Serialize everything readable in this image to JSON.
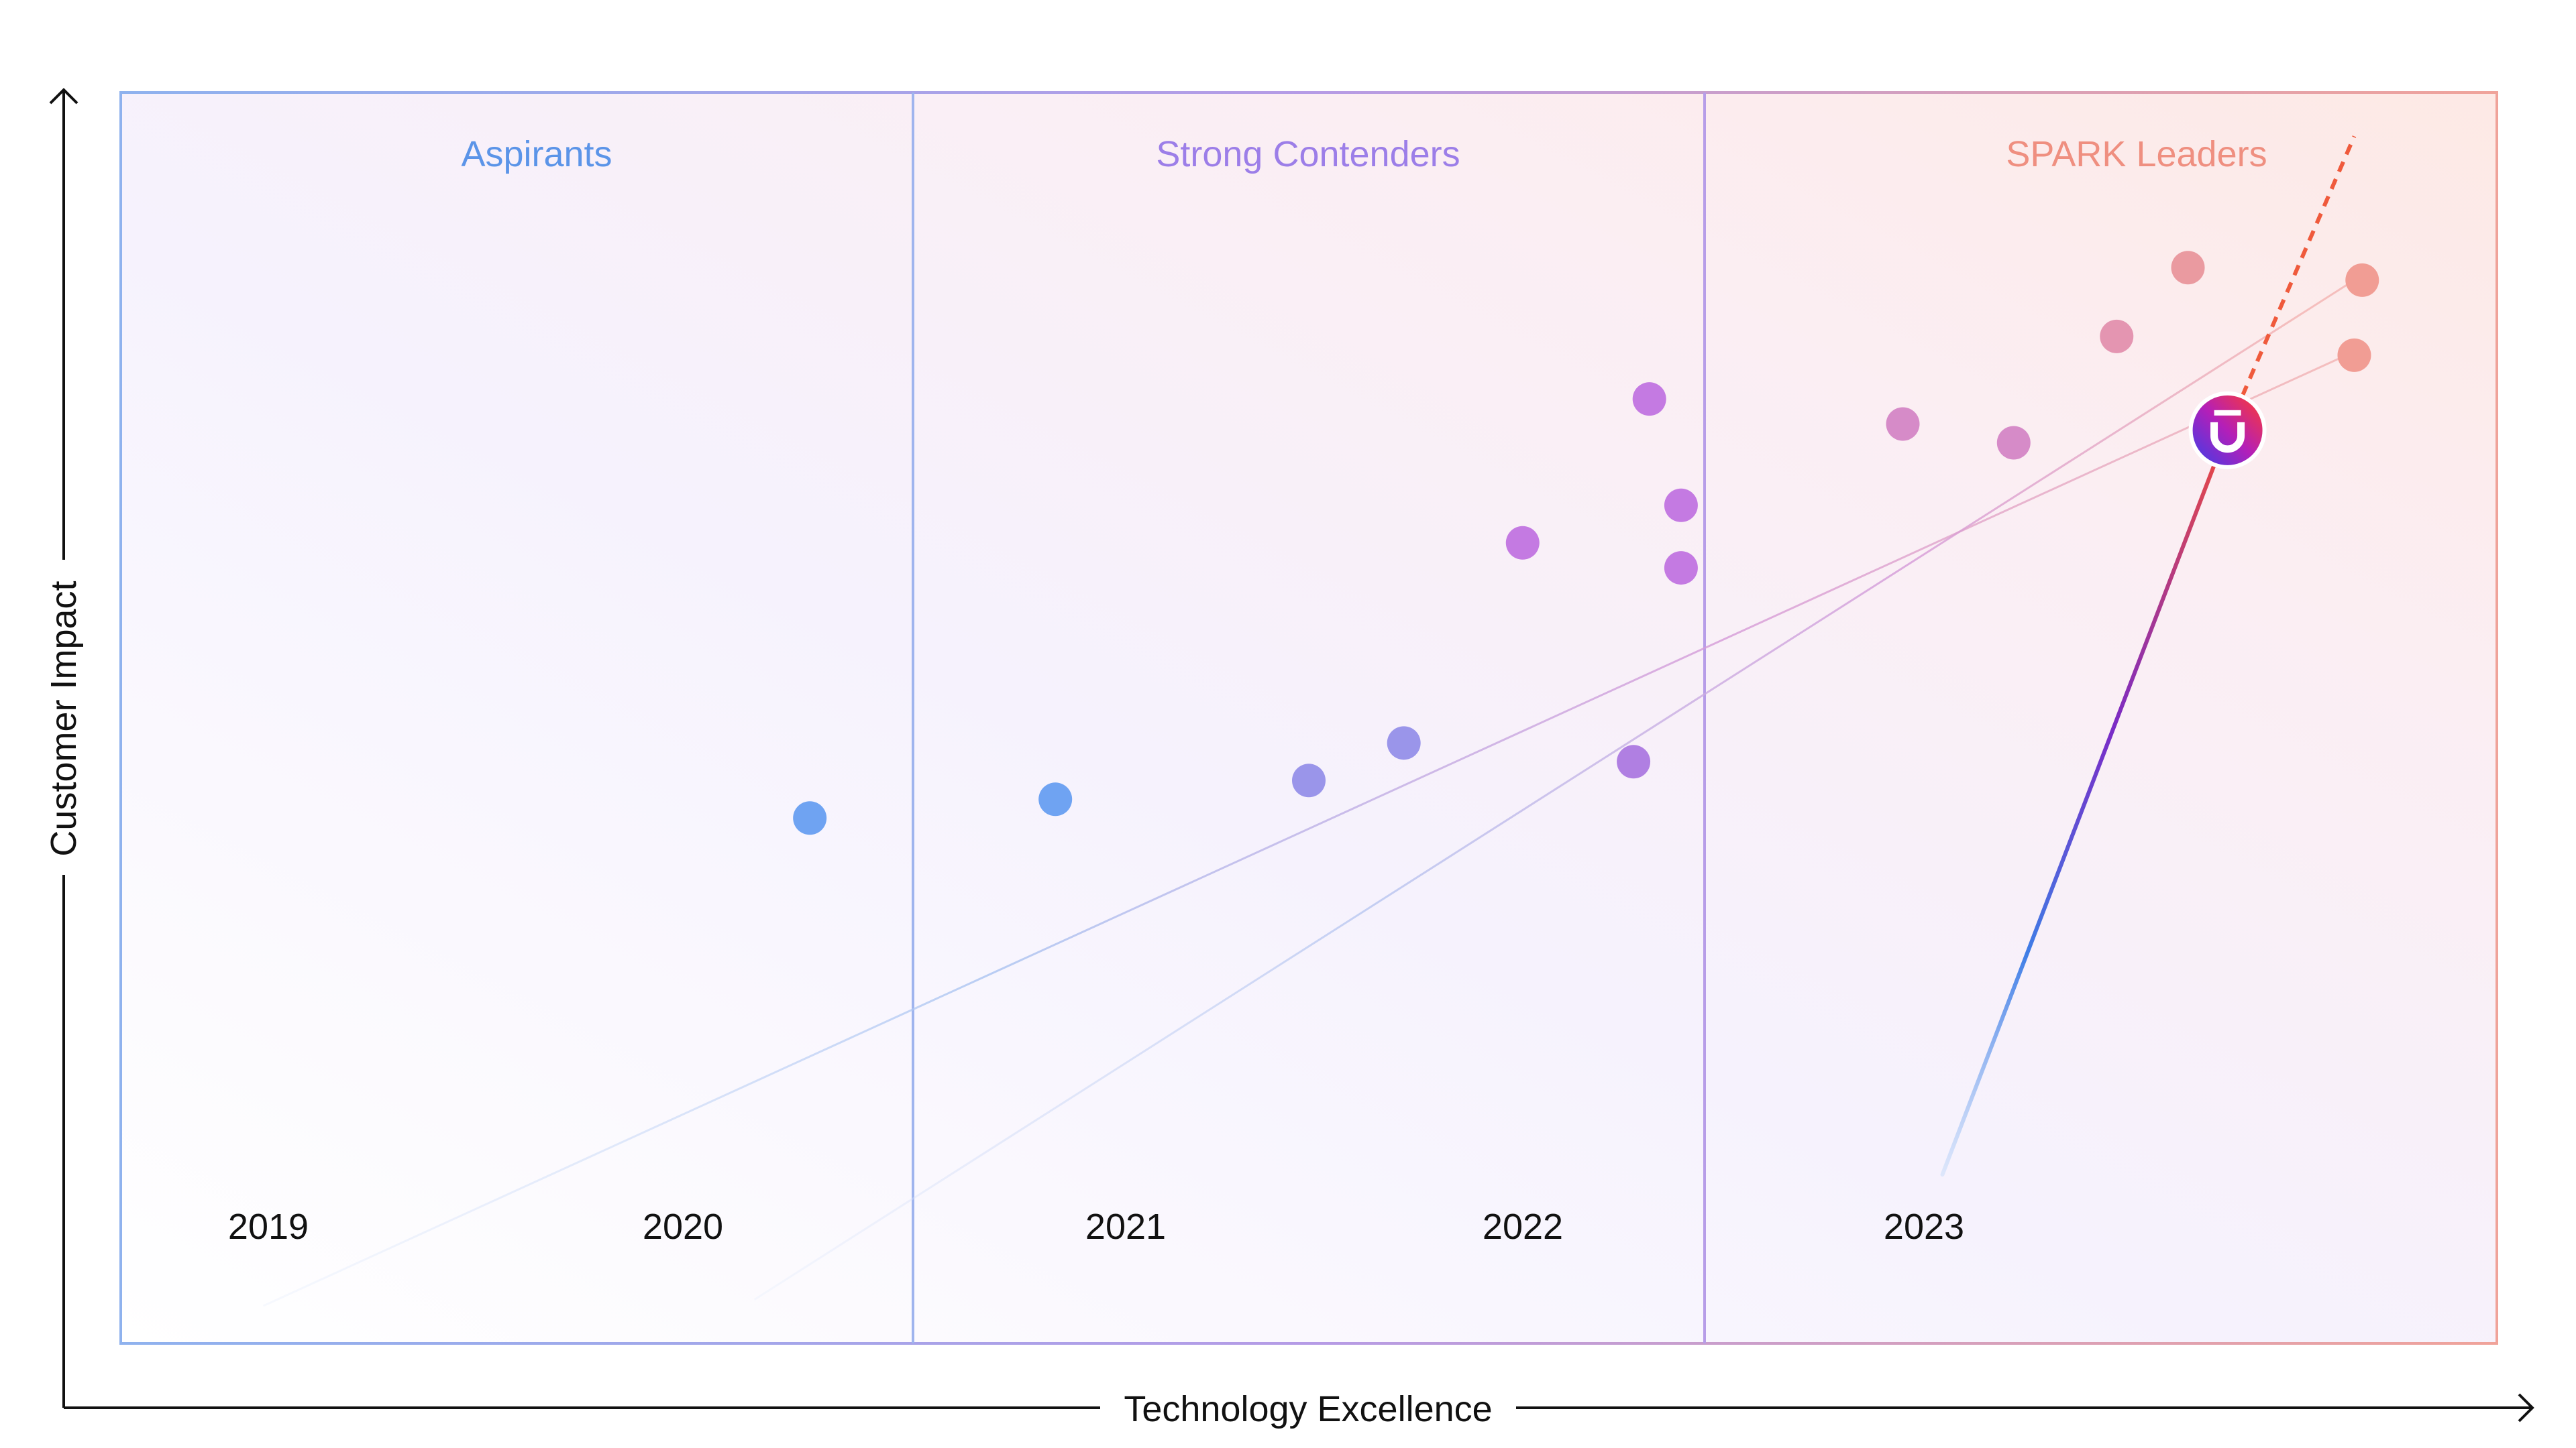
{
  "chart_data": {
    "type": "scatter",
    "title": "",
    "xlabel": "Technology Excellence",
    "ylabel": "Customer Impact",
    "xlim": [
      0,
      3
    ],
    "ylim": [
      0,
      2
    ],
    "quadrants": [
      {
        "label": "Aspirants",
        "color": "#5b94e8"
      },
      {
        "label": "Strong Contenders",
        "color": "#9c7ee8"
      },
      {
        "label": "SPARK Leaders",
        "color": "#ef8f80"
      }
    ],
    "years": [
      "2019",
      "2020",
      "2021",
      "2022",
      "2023"
    ],
    "points": [
      {
        "x": 0.87,
        "y": 0.84,
        "color": "#6fa3f2"
      },
      {
        "x": 1.18,
        "y": 0.87,
        "color": "#6fa3f2"
      },
      {
        "x": 1.5,
        "y": 0.9,
        "color": "#9a95ea"
      },
      {
        "x": 1.62,
        "y": 0.96,
        "color": "#9a95ea"
      },
      {
        "x": 1.91,
        "y": 0.93,
        "color": "#b07fe2"
      },
      {
        "x": 1.77,
        "y": 1.28,
        "color": "#c47ae2"
      },
      {
        "x": 1.97,
        "y": 1.34,
        "color": "#c47ae2"
      },
      {
        "x": 1.97,
        "y": 1.24,
        "color": "#c47ae2"
      },
      {
        "x": 1.93,
        "y": 1.51,
        "color": "#c47ae2"
      },
      {
        "x": 2.25,
        "y": 1.47,
        "color": "#d68bc8"
      },
      {
        "x": 2.39,
        "y": 1.44,
        "color": "#d68bc8"
      },
      {
        "x": 2.52,
        "y": 1.61,
        "color": "#e495b1"
      },
      {
        "x": 2.61,
        "y": 1.72,
        "color": "#ea9aa0"
      },
      {
        "x": 2.83,
        "y": 1.7,
        "color": "#f19d94"
      },
      {
        "x": 2.82,
        "y": 1.58,
        "color": "#f19d94"
      }
    ],
    "highlight": {
      "x": 2.66,
      "y": 1.46,
      "logo": "U-logo-icon",
      "color": "#ef4040"
    },
    "trend_main": {
      "start": [
        2.3,
        0.27
      ],
      "end": [
        2.66,
        1.46
      ],
      "projection_end": [
        2.82,
        1.93
      ]
    },
    "trend_faint": [
      {
        "start": [
          0.18,
          0.06
        ],
        "end": [
          2.81,
          1.58
        ]
      },
      {
        "start": [
          0.8,
          0.07
        ],
        "end": [
          2.82,
          1.7
        ]
      }
    ]
  }
}
